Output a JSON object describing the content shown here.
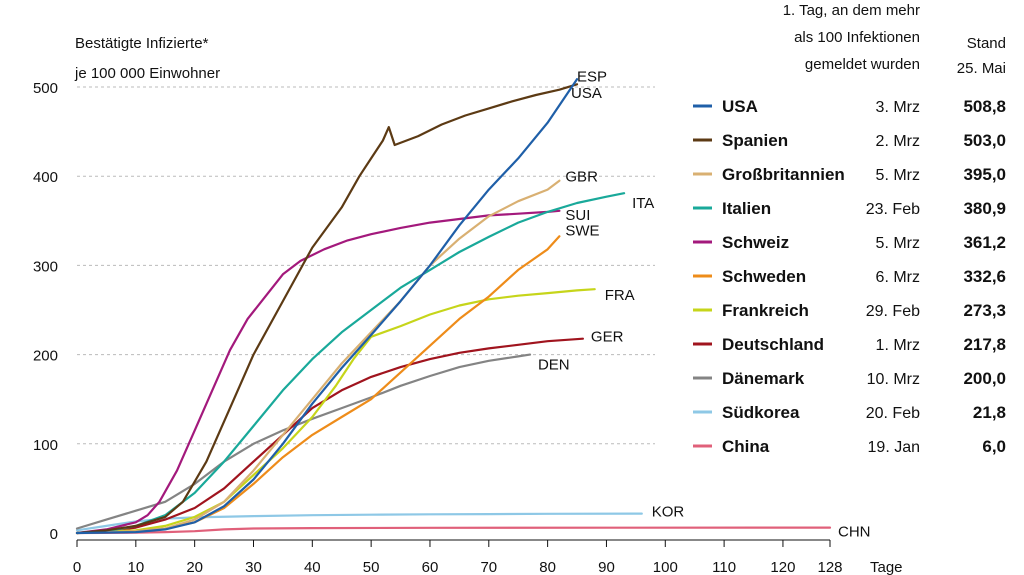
{
  "chart_data": {
    "type": "line",
    "ylabel_lines": [
      "Bestätigte Infizierte*",
      "je 100 000 Einwohner"
    ],
    "xlabel": "Tage",
    "xlim": [
      0,
      128
    ],
    "ylim": [
      0,
      520
    ],
    "x_ticks": [
      "0",
      "10",
      "20",
      "30",
      "40",
      "50",
      "60",
      "70",
      "80",
      "90",
      "100",
      "110",
      "120",
      "128"
    ],
    "y_ticks": [
      "0",
      "100",
      "200",
      "300",
      "400",
      "500"
    ],
    "grid": "horizontal dashed",
    "legend_header": {
      "date_lines": [
        "1. Tag, an dem mehr",
        "als 100 Infektionen",
        "gemeldet wurden"
      ],
      "value_lines": [
        "Stand",
        "25. Mai"
      ]
    },
    "series": [
      {
        "name": "USA",
        "code": "USA",
        "color": "#1f5fa8",
        "start_date": "3. Mrz",
        "value_label": "508,8",
        "points": [
          [
            0,
            0
          ],
          [
            10,
            1
          ],
          [
            15,
            4
          ],
          [
            20,
            12
          ],
          [
            25,
            30
          ],
          [
            30,
            60
          ],
          [
            35,
            100
          ],
          [
            40,
            145
          ],
          [
            45,
            185
          ],
          [
            50,
            222
          ],
          [
            55,
            260
          ],
          [
            60,
            300
          ],
          [
            65,
            345
          ],
          [
            70,
            385
          ],
          [
            75,
            420
          ],
          [
            80,
            460
          ],
          [
            85,
            508.8
          ]
        ]
      },
      {
        "name": "Spanien",
        "code": "ESP",
        "color": "#5c3a14",
        "start_date": "2. Mrz",
        "value_label": "503,0",
        "points": [
          [
            0,
            0
          ],
          [
            5,
            3
          ],
          [
            10,
            8
          ],
          [
            15,
            18
          ],
          [
            18,
            35
          ],
          [
            22,
            80
          ],
          [
            26,
            140
          ],
          [
            30,
            200
          ],
          [
            35,
            260
          ],
          [
            40,
            320
          ],
          [
            45,
            365
          ],
          [
            48,
            400
          ],
          [
            50,
            420
          ],
          [
            52,
            440
          ],
          [
            53,
            455
          ],
          [
            54,
            435
          ],
          [
            58,
            445
          ],
          [
            62,
            458
          ],
          [
            66,
            468
          ],
          [
            70,
            476
          ],
          [
            74,
            484
          ],
          [
            78,
            491
          ],
          [
            82,
            497
          ],
          [
            85,
            503
          ]
        ]
      },
      {
        "name": "Großbritannien",
        "code": "GBR",
        "color": "#d9b072",
        "start_date": "5. Mrz",
        "value_label": "395,0",
        "points": [
          [
            0,
            0
          ],
          [
            10,
            2
          ],
          [
            15,
            5
          ],
          [
            20,
            15
          ],
          [
            25,
            35
          ],
          [
            30,
            70
          ],
          [
            35,
            110
          ],
          [
            40,
            150
          ],
          [
            45,
            190
          ],
          [
            50,
            225
          ],
          [
            55,
            260
          ],
          [
            60,
            300
          ],
          [
            65,
            330
          ],
          [
            70,
            355
          ],
          [
            75,
            372
          ],
          [
            80,
            385
          ],
          [
            82,
            395
          ]
        ]
      },
      {
        "name": "Italien",
        "code": "ITA",
        "color": "#19a99a",
        "start_date": "23. Feb",
        "value_label": "380,9",
        "points": [
          [
            0,
            0
          ],
          [
            5,
            2
          ],
          [
            10,
            8
          ],
          [
            15,
            20
          ],
          [
            20,
            45
          ],
          [
            25,
            80
          ],
          [
            30,
            120
          ],
          [
            35,
            160
          ],
          [
            40,
            195
          ],
          [
            45,
            225
          ],
          [
            50,
            250
          ],
          [
            55,
            275
          ],
          [
            60,
            295
          ],
          [
            65,
            315
          ],
          [
            70,
            332
          ],
          [
            75,
            348
          ],
          [
            80,
            360
          ],
          [
            85,
            370
          ],
          [
            90,
            377
          ],
          [
            93,
            380.9
          ]
        ]
      },
      {
        "name": "Schweiz",
        "code": "SUI",
        "color": "#a3197c",
        "start_date": "5. Mrz",
        "value_label": "361,2",
        "points": [
          [
            0,
            0
          ],
          [
            5,
            4
          ],
          [
            10,
            12
          ],
          [
            12,
            20
          ],
          [
            14,
            35
          ],
          [
            17,
            70
          ],
          [
            20,
            115
          ],
          [
            23,
            160
          ],
          [
            26,
            205
          ],
          [
            29,
            240
          ],
          [
            32,
            265
          ],
          [
            35,
            290
          ],
          [
            38,
            305
          ],
          [
            42,
            318
          ],
          [
            46,
            328
          ],
          [
            50,
            335
          ],
          [
            55,
            342
          ],
          [
            60,
            348
          ],
          [
            65,
            352
          ],
          [
            70,
            356
          ],
          [
            75,
            358
          ],
          [
            80,
            360
          ],
          [
            82,
            361.2
          ]
        ]
      },
      {
        "name": "Schweden",
        "code": "SWE",
        "color": "#ee8c1a",
        "start_date": "6. Mrz",
        "value_label": "332,6",
        "points": [
          [
            0,
            0
          ],
          [
            10,
            2
          ],
          [
            15,
            5
          ],
          [
            20,
            12
          ],
          [
            25,
            28
          ],
          [
            30,
            55
          ],
          [
            35,
            85
          ],
          [
            40,
            110
          ],
          [
            45,
            130
          ],
          [
            50,
            150
          ],
          [
            55,
            180
          ],
          [
            60,
            210
          ],
          [
            65,
            240
          ],
          [
            70,
            265
          ],
          [
            75,
            295
          ],
          [
            80,
            318
          ],
          [
            82,
            332.6
          ]
        ]
      },
      {
        "name": "Frankreich",
        "code": "FRA",
        "color": "#c6d51a",
        "start_date": "29. Feb",
        "value_label": "273,3",
        "points": [
          [
            0,
            0
          ],
          [
            10,
            3
          ],
          [
            15,
            8
          ],
          [
            20,
            18
          ],
          [
            25,
            35
          ],
          [
            30,
            65
          ],
          [
            35,
            95
          ],
          [
            40,
            130
          ],
          [
            44,
            165
          ],
          [
            47,
            195
          ],
          [
            50,
            220
          ],
          [
            55,
            232
          ],
          [
            60,
            245
          ],
          [
            65,
            255
          ],
          [
            70,
            262
          ],
          [
            75,
            266
          ],
          [
            80,
            269
          ],
          [
            85,
            272
          ],
          [
            88,
            273.3
          ]
        ]
      },
      {
        "name": "Deutschland",
        "code": "GER",
        "color": "#a0141e",
        "start_date": "1. Mrz",
        "value_label": "217,8",
        "points": [
          [
            0,
            0
          ],
          [
            5,
            2
          ],
          [
            10,
            6
          ],
          [
            15,
            15
          ],
          [
            20,
            28
          ],
          [
            25,
            50
          ],
          [
            30,
            80
          ],
          [
            35,
            110
          ],
          [
            40,
            140
          ],
          [
            45,
            160
          ],
          [
            50,
            175
          ],
          [
            55,
            186
          ],
          [
            60,
            195
          ],
          [
            65,
            202
          ],
          [
            70,
            207
          ],
          [
            75,
            211
          ],
          [
            80,
            215
          ],
          [
            86,
            217.8
          ]
        ]
      },
      {
        "name": "Dänemark",
        "code": "DEN",
        "color": "#848484",
        "start_date": "10. Mrz",
        "value_label": "200,0",
        "points": [
          [
            0,
            5
          ],
          [
            5,
            15
          ],
          [
            10,
            25
          ],
          [
            15,
            35
          ],
          [
            20,
            55
          ],
          [
            25,
            80
          ],
          [
            30,
            100
          ],
          [
            35,
            115
          ],
          [
            40,
            128
          ],
          [
            45,
            140
          ],
          [
            50,
            152
          ],
          [
            55,
            165
          ],
          [
            60,
            176
          ],
          [
            65,
            186
          ],
          [
            70,
            193
          ],
          [
            75,
            198
          ],
          [
            77,
            200
          ]
        ]
      },
      {
        "name": "Südkorea",
        "code": "KOR",
        "color": "#8ec8e6",
        "start_date": "20. Feb",
        "value_label": "21,8",
        "points": [
          [
            0,
            3
          ],
          [
            5,
            8
          ],
          [
            10,
            13
          ],
          [
            15,
            16
          ],
          [
            20,
            17.5
          ],
          [
            30,
            19
          ],
          [
            40,
            20
          ],
          [
            50,
            20.5
          ],
          [
            60,
            21
          ],
          [
            70,
            21.2
          ],
          [
            80,
            21.5
          ],
          [
            96,
            21.8
          ]
        ]
      },
      {
        "name": "China",
        "code": "CHN",
        "color": "#e0607a",
        "start_date": "19. Jan",
        "value_label": "6,0",
        "points": [
          [
            0,
            0
          ],
          [
            10,
            0.3
          ],
          [
            15,
            1
          ],
          [
            20,
            2
          ],
          [
            25,
            4
          ],
          [
            30,
            5
          ],
          [
            40,
            5.5
          ],
          [
            60,
            5.8
          ],
          [
            90,
            5.9
          ],
          [
            128,
            6.0
          ]
        ]
      }
    ]
  }
}
